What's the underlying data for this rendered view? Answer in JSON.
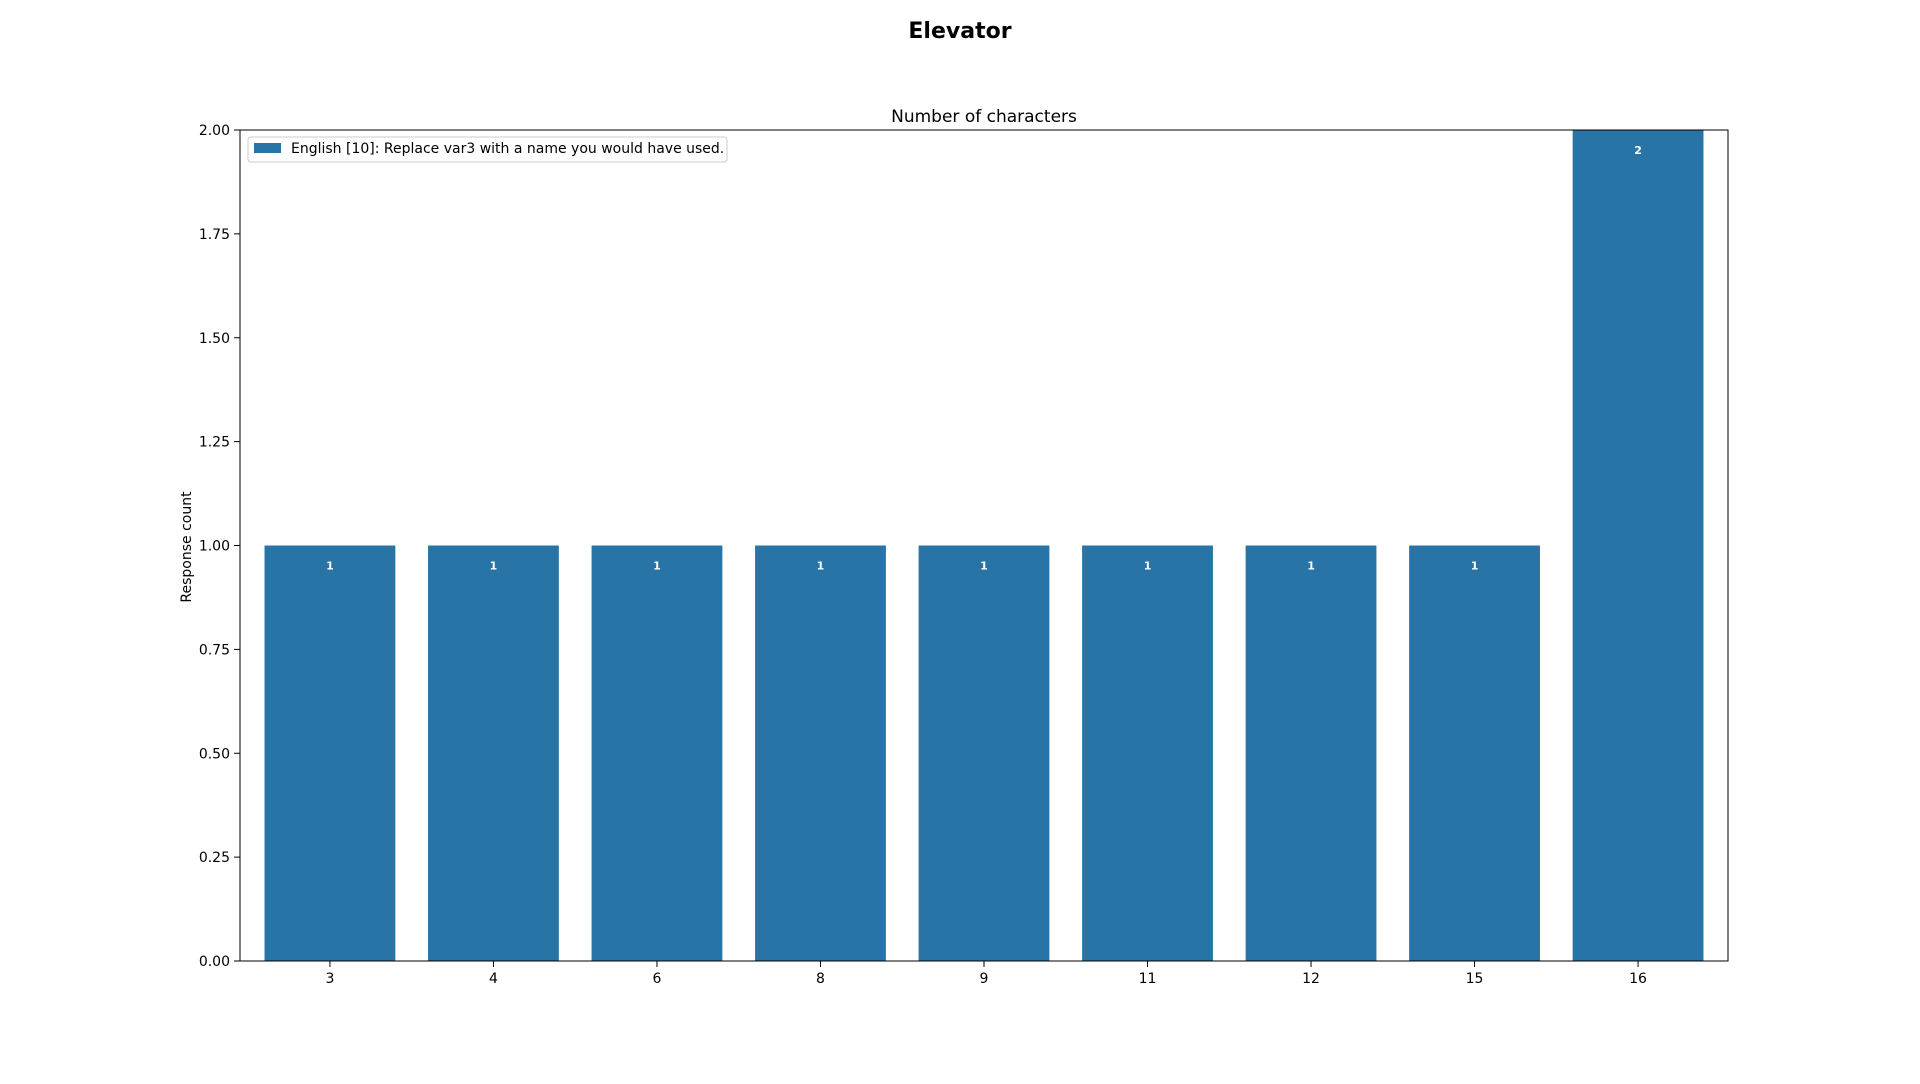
{
  "figure_title": "Elevator",
  "chart_data": {
    "type": "bar",
    "title": "Number of characters",
    "xlabel": "",
    "ylabel": "Response count",
    "categories": [
      "3",
      "4",
      "6",
      "8",
      "9",
      "11",
      "12",
      "15",
      "16"
    ],
    "series": [
      {
        "name": "English [10]: Replace var3 with a name you would have used.",
        "values": [
          1,
          1,
          1,
          1,
          1,
          1,
          1,
          1,
          2
        ],
        "color": "#2874a6"
      }
    ],
    "data_labels": [
      "1",
      "1",
      "1",
      "1",
      "1",
      "1",
      "1",
      "1",
      "2"
    ],
    "ylim": [
      0,
      2
    ],
    "yticks": [
      "0.00",
      "0.25",
      "0.50",
      "0.75",
      "1.00",
      "1.25",
      "1.50",
      "1.75",
      "2.00"
    ],
    "grid": false,
    "legend_position": "top-left"
  }
}
